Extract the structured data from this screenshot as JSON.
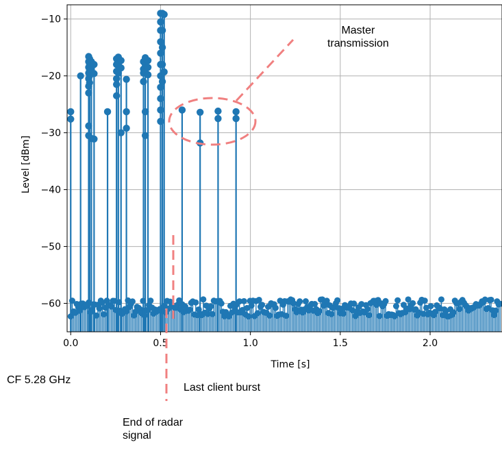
{
  "chart_data": {
    "type": "stem",
    "xlabel": "Time [s]",
    "ylabel": "Level [dBm]",
    "xlim": [
      -0.02,
      2.4
    ],
    "ylim": [
      -65,
      -7.5
    ],
    "x_ticks": [
      0.0,
      0.5,
      1.0,
      1.5,
      2.0
    ],
    "x_tick_labels": [
      "0.0",
      "0.5",
      "1.0",
      "1.5",
      "2.0"
    ],
    "y_ticks": [
      -60,
      -50,
      -40,
      -30,
      -20,
      -10
    ],
    "y_tick_labels": [
      "−60",
      "−50",
      "−40",
      "−30",
      "−20",
      "−10"
    ],
    "grid": true,
    "baseline": -65,
    "noise_floor": {
      "x_range": [
        0.0,
        2.4
      ],
      "level": -60.8,
      "spread": 1.5
    },
    "bursts": [
      {
        "x": 0.0,
        "values": [
          -26.3,
          -27.6
        ]
      },
      {
        "x": 0.055,
        "values": [
          -20.0
        ]
      },
      {
        "x": 0.1,
        "values": [
          -16.6,
          -17.5,
          -18.5,
          -19.5,
          -20.5,
          -21.8,
          -23.0,
          -28.8,
          -30.5
        ]
      },
      {
        "x": 0.105,
        "values": [
          -17.0,
          -18.0,
          -19.0,
          -20.0,
          -21.2
        ]
      },
      {
        "x": 0.115,
        "values": [
          -17.5,
          -18.8,
          -31.0
        ]
      },
      {
        "x": 0.13,
        "values": [
          -18.0,
          -19.6,
          -31.1
        ]
      },
      {
        "x": 0.205,
        "values": [
          -26.3
        ]
      },
      {
        "x": 0.255,
        "values": [
          -17.0,
          -18.0,
          -19.2,
          -20.5,
          -21.5,
          -23.5
        ]
      },
      {
        "x": 0.265,
        "values": [
          -16.7,
          -18.0,
          -19.5
        ]
      },
      {
        "x": 0.28,
        "values": [
          -17.3,
          -18.6,
          -30.0
        ]
      },
      {
        "x": 0.31,
        "values": [
          -20.6,
          -26.3,
          -29.2
        ]
      },
      {
        "x": 0.405,
        "values": [
          -17.5,
          -18.8,
          -19.5,
          -21.0
        ]
      },
      {
        "x": 0.415,
        "values": [
          -16.8,
          -18.0,
          -19.2,
          -26.3,
          -30.5
        ]
      },
      {
        "x": 0.43,
        "values": [
          -17.3,
          -18.5,
          -19.8
        ]
      },
      {
        "x": 0.5,
        "values": [
          -9.0,
          -10.5,
          -12.0,
          -14.0,
          -16.0,
          -18.0,
          -20.0,
          -22.0,
          -24.0,
          -26.0,
          -28.0
        ]
      },
      {
        "x": 0.51,
        "values": [
          -9.0,
          -12.0,
          -15.0,
          -18.0,
          -21.0
        ]
      },
      {
        "x": 0.52,
        "values": [
          -9.2,
          -19.3
        ]
      },
      {
        "x": 0.62,
        "values": [
          -26.0
        ]
      },
      {
        "x": 0.72,
        "values": [
          -26.4,
          -31.8
        ]
      },
      {
        "x": 0.82,
        "values": [
          -26.2,
          -27.5
        ]
      },
      {
        "x": 0.92,
        "values": [
          -26.3,
          -27.5
        ]
      }
    ],
    "color": "#1f77b4"
  },
  "annotations": {
    "master": "Master\ntransmission",
    "last_client": "Last client burst",
    "end_radar": "End of radar\nsignal",
    "cf": "CF 5.28 GHz",
    "highlight_color": "#f08080"
  }
}
